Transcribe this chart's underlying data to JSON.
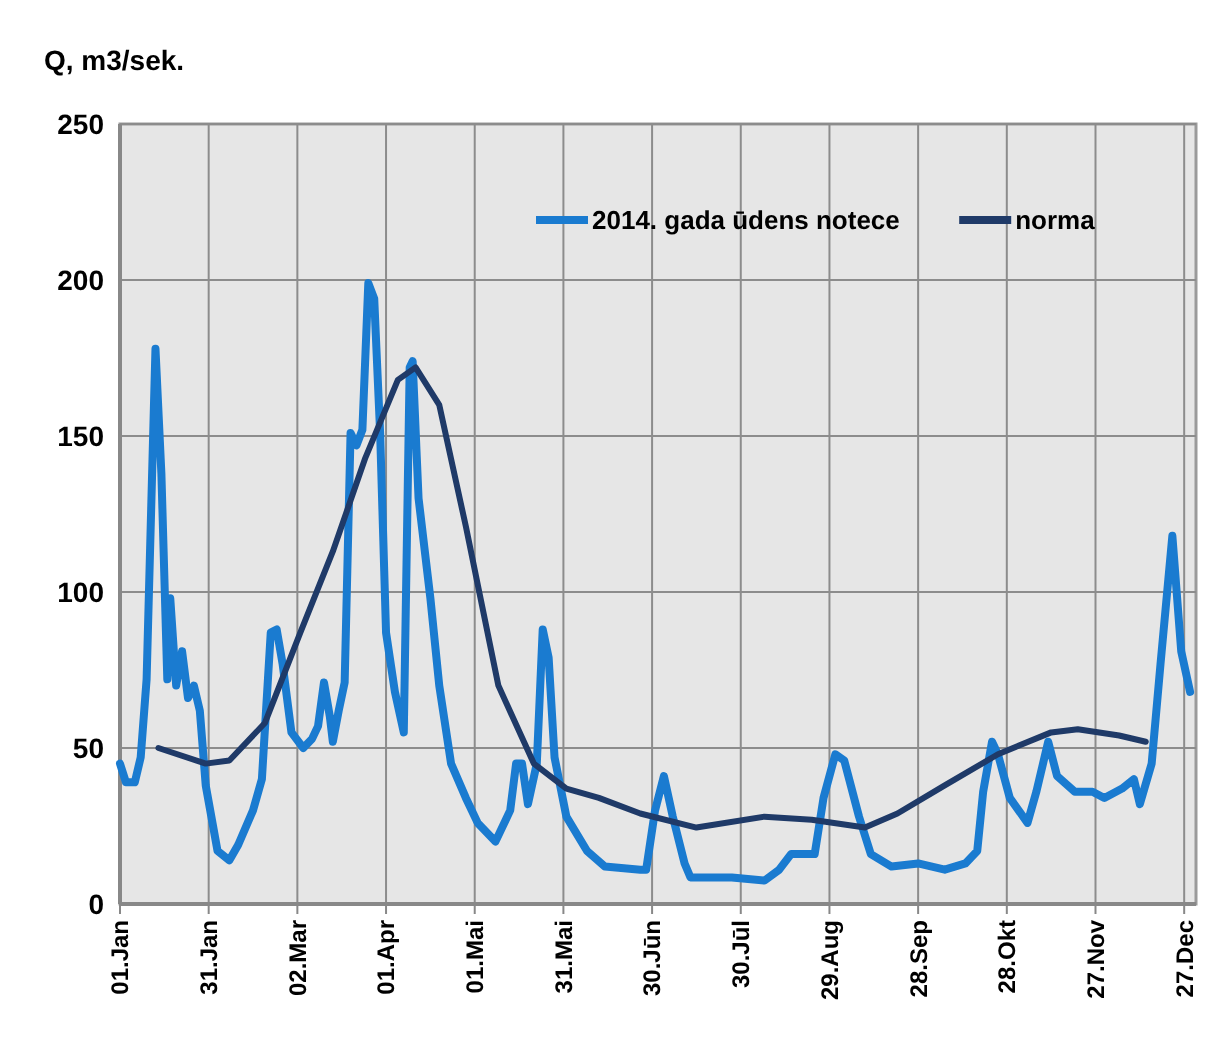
{
  "chart_data": {
    "type": "line",
    "ylabel": "Q, m3/sek.",
    "xlim": [
      "--01-01",
      "--12-31"
    ],
    "ylim": [
      0,
      250
    ],
    "yticks": [
      0,
      50,
      100,
      150,
      200,
      250
    ],
    "xticks": [
      {
        "value": "--01-01",
        "label": "01.Jan"
      },
      {
        "value": "--01-31",
        "label": "31.Jan"
      },
      {
        "value": "--03-02",
        "label": "02.Mar"
      },
      {
        "value": "--04-01",
        "label": "01.Apr"
      },
      {
        "value": "--05-01",
        "label": "01.Mai"
      },
      {
        "value": "--05-31",
        "label": "31.Mai"
      },
      {
        "value": "--06-30",
        "label": "30.Jūn"
      },
      {
        "value": "--07-30",
        "label": "30.Jūl"
      },
      {
        "value": "--08-29",
        "label": "29.Aug"
      },
      {
        "value": "--09-28",
        "label": "28.Sep"
      },
      {
        "value": "--10-28",
        "label": "28.Okt"
      },
      {
        "value": "--11-27",
        "label": "27.Nov"
      },
      {
        "value": "--12-27",
        "label": "27.Dec"
      }
    ],
    "grid": true,
    "legend": "top right",
    "marker": "none",
    "line_style": "solid",
    "series": [
      {
        "name": "2014. gada ūdens notece",
        "color": "#1a7bd0",
        "x": [
          "--01-01",
          "--01-03",
          "--01-06",
          "--01-08",
          "--01-10",
          "--01-13",
          "--01-15",
          "--01-17",
          "--01-18",
          "--01-20",
          "--01-22",
          "--01-24",
          "--01-26",
          "--01-28",
          "--01-30",
          "--02-03",
          "--02-07",
          "--02-10",
          "--02-15",
          "--02-18",
          "--02-21",
          "--02-23",
          "--02-25",
          "--02-28",
          "--03-04",
          "--03-07",
          "--03-09",
          "--03-11",
          "--03-13",
          "--03-14",
          "--03-16",
          "--03-18",
          "--03-20",
          "--03-22",
          "--03-24",
          "--03-26",
          "--03-28",
          "--03-30",
          "--04-01",
          "--04-04",
          "--04-07",
          "--04-09",
          "--04-10",
          "--04-12",
          "--04-16",
          "--04-19",
          "--04-23",
          "--04-28",
          "--05-02",
          "--05-08",
          "--05-13",
          "--05-15",
          "--05-17",
          "--05-19",
          "--05-22",
          "--05-24",
          "--05-26",
          "--05-28",
          "--06-01",
          "--06-08",
          "--06-14",
          "--06-26",
          "--06-28",
          "--07-01",
          "--07-04",
          "--07-07",
          "--07-11",
          "--07-13",
          "--07-27",
          "--08-07",
          "--08-12",
          "--08-16",
          "--08-24",
          "--08-27",
          "--08-31",
          "--09-03",
          "--09-08",
          "--09-12",
          "--09-19",
          "--09-28",
          "--10-07",
          "--10-14",
          "--10-18",
          "--10-20",
          "--10-23",
          "--10-25",
          "--10-29",
          "--11-04",
          "--11-07",
          "--11-11",
          "--11-14",
          "--11-20",
          "--11-26",
          "--11-30",
          "--12-06",
          "--12-10",
          "--12-12",
          "--12-16",
          "--12-19",
          "--12-23",
          "--12-26",
          "--12-29"
        ],
        "values": [
          45,
          39,
          39,
          47,
          72,
          178,
          138,
          72,
          98,
          70,
          81,
          66,
          70,
          62,
          38,
          17,
          14,
          19,
          30,
          40,
          87,
          88,
          77,
          55,
          50,
          53,
          57,
          71,
          60,
          52,
          62,
          71,
          151,
          147,
          152,
          199,
          194,
          151,
          87,
          68,
          55,
          172,
          174,
          130,
          98,
          70,
          45,
          34,
          26,
          20,
          30,
          45,
          45,
          32,
          45,
          88,
          79,
          47,
          28,
          17,
          12,
          11,
          11,
          30,
          41,
          28,
          13,
          8.5,
          8.5,
          7.5,
          11,
          16,
          16,
          34,
          48,
          46,
          28,
          16,
          12,
          13,
          11,
          13,
          17,
          36,
          52,
          48,
          34,
          26,
          36,
          52,
          41,
          36,
          36,
          34,
          37,
          40,
          32,
          45,
          77,
          118,
          81,
          68
        ]
      },
      {
        "name": "norma",
        "color": "#1f3a68",
        "x": [
          "--01-14",
          "--01-30",
          "--02-07",
          "--02-19",
          "--03-03",
          "--03-14",
          "--03-25",
          "--04-05",
          "--04-11",
          "--04-19",
          "--04-28",
          "--05-09",
          "--05-21",
          "--06-01",
          "--06-12",
          "--06-26",
          "--07-15",
          "--08-07",
          "--08-23",
          "--09-10",
          "--09-21",
          "--10-07",
          "--10-25",
          "--11-12",
          "--11-21",
          "--12-05",
          "--12-14"
        ],
        "values": [
          50,
          45,
          46,
          58,
          87,
          113,
          143,
          168,
          172,
          160,
          121,
          70,
          45,
          37,
          34,
          29,
          24.5,
          28,
          27,
          24.5,
          29,
          38,
          48,
          55,
          56,
          54,
          52
        ]
      }
    ]
  }
}
